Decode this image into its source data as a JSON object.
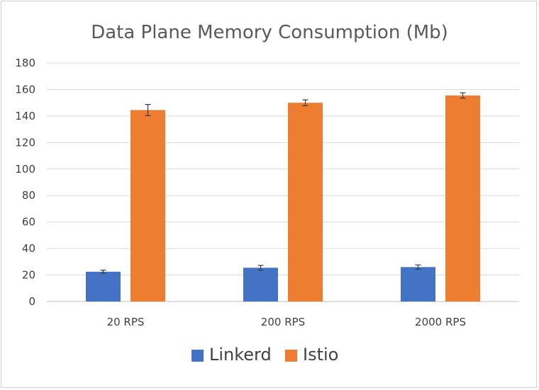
{
  "chart_data": {
    "type": "bar",
    "title": "Data Plane Memory Consumption (Mb)",
    "xlabel": "",
    "ylabel": "",
    "categories": [
      "20 RPS",
      "200 RPS",
      "2000 RPS"
    ],
    "ylim": [
      0,
      180
    ],
    "yticks": [
      0,
      20,
      40,
      60,
      80,
      100,
      120,
      140,
      160,
      180
    ],
    "grid": true,
    "legend_position": "bottom",
    "series": [
      {
        "name": "Linkerd",
        "color": "#4472c4",
        "values": [
          22.5,
          25.5,
          26
        ],
        "error": [
          1.2,
          1.8,
          1.6
        ]
      },
      {
        "name": "Istio",
        "color": "#ed7d31",
        "values": [
          144.5,
          150,
          155.5
        ],
        "error": [
          4.2,
          2.2,
          2.0
        ]
      }
    ]
  }
}
